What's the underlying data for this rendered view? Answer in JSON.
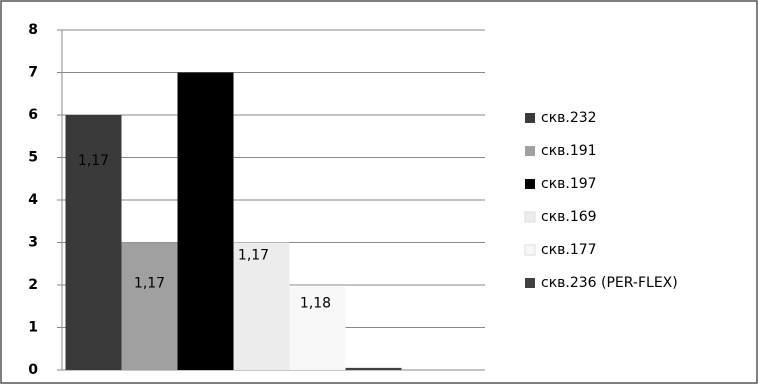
{
  "chart_data": {
    "type": "bar",
    "categories": [
      null
    ],
    "series": [
      {
        "name": "скв.232",
        "color": "#3a3a3a",
        "values": [
          6
        ],
        "annotation": "1,17"
      },
      {
        "name": "скв.191",
        "color": "#a0a0a0",
        "values": [
          3
        ],
        "annotation": "1,17"
      },
      {
        "name": "скв.197",
        "color": "#000000",
        "values": [
          7
        ]
      },
      {
        "name": "скв.169",
        "color": "#ececec",
        "values": [
          3
        ],
        "annotation": "1,17"
      },
      {
        "name": "скв.177",
        "color": "#f8f8f8",
        "values": [
          1.95
        ],
        "annotation": "1,18"
      },
      {
        "name": "скв.236 (PER-FLEX)",
        "color": "#404040",
        "values": [
          0.05
        ]
      }
    ],
    "ylim": [
      0,
      8
    ],
    "yticks": [
      0,
      1,
      2,
      3,
      4,
      5,
      6,
      7,
      8
    ],
    "grid": true,
    "legend": "right"
  }
}
